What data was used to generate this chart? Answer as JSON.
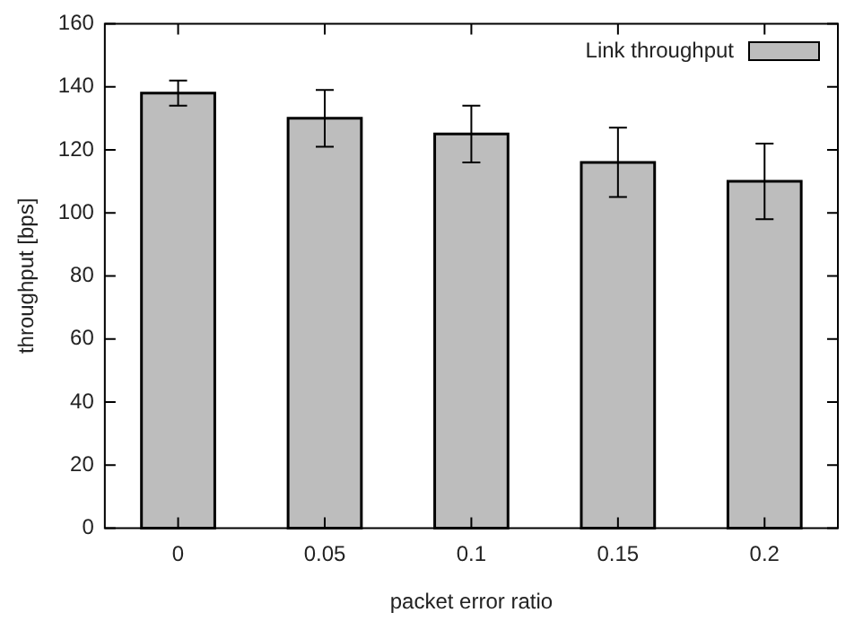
{
  "chart_data": {
    "type": "bar",
    "xlabel": "packet error ratio",
    "ylabel": "throughput [bps]",
    "categories": [
      "0",
      "0.05",
      "0.1",
      "0.15",
      "0.2"
    ],
    "series": [
      {
        "name": "Link throughput",
        "color": "#bdbdbd",
        "values": [
          138,
          130,
          125,
          116,
          110
        ],
        "errors": [
          4,
          9,
          9,
          11,
          12
        ]
      }
    ],
    "ylim": [
      0,
      160
    ],
    "yticks": [
      0,
      20,
      40,
      60,
      80,
      100,
      120,
      140,
      160
    ],
    "grid": false,
    "legend": "top right"
  }
}
